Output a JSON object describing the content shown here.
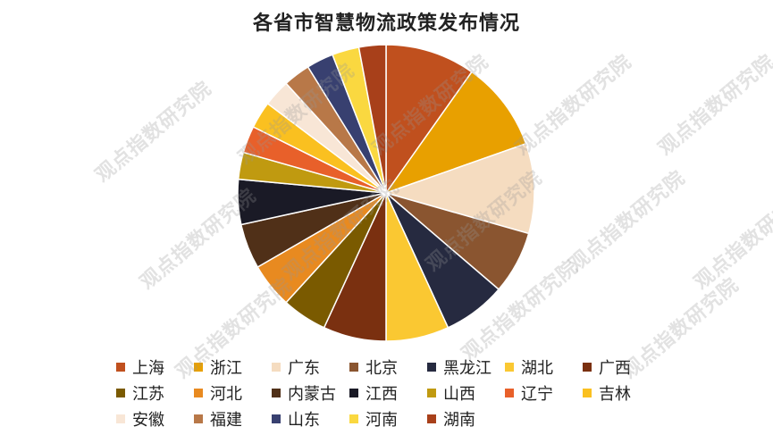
{
  "watermark_text": "观点指数研究院",
  "chart_data": {
    "type": "pie",
    "title": "各省市智慧物流政策发布情况",
    "legend_position": "bottom",
    "slices": [
      {
        "label": "上海",
        "value": 10,
        "color": "#C0501E"
      },
      {
        "label": "浙江",
        "value": 10,
        "color": "#E8A000"
      },
      {
        "label": "广东",
        "value": 10,
        "color": "#F5DCC0"
      },
      {
        "label": "北京",
        "value": 7,
        "color": "#8A5530"
      },
      {
        "label": "黑龙江",
        "value": 7,
        "color": "#262A40"
      },
      {
        "label": "湖北",
        "value": 7,
        "color": "#FAC832"
      },
      {
        "label": "广西",
        "value": 7,
        "color": "#7A3010"
      },
      {
        "label": "江苏",
        "value": 5,
        "color": "#7A5A00"
      },
      {
        "label": "河北",
        "value": 5,
        "color": "#E88A20"
      },
      {
        "label": "内蒙古",
        "value": 5,
        "color": "#503018"
      },
      {
        "label": "江西",
        "value": 5,
        "color": "#1A1A26"
      },
      {
        "label": "山西",
        "value": 3,
        "color": "#C09A10"
      },
      {
        "label": "辽宁",
        "value": 3,
        "color": "#E8602A"
      },
      {
        "label": "吉林",
        "value": 3,
        "color": "#FAC020"
      },
      {
        "label": "安徽",
        "value": 3,
        "color": "#F8E6D6"
      },
      {
        "label": "福建",
        "value": 3,
        "color": "#B87848"
      },
      {
        "label": "山东",
        "value": 3,
        "color": "#384070"
      },
      {
        "label": "河南",
        "value": 3,
        "color": "#FAD840"
      },
      {
        "label": "湖南",
        "value": 3,
        "color": "#A8401A"
      }
    ]
  }
}
